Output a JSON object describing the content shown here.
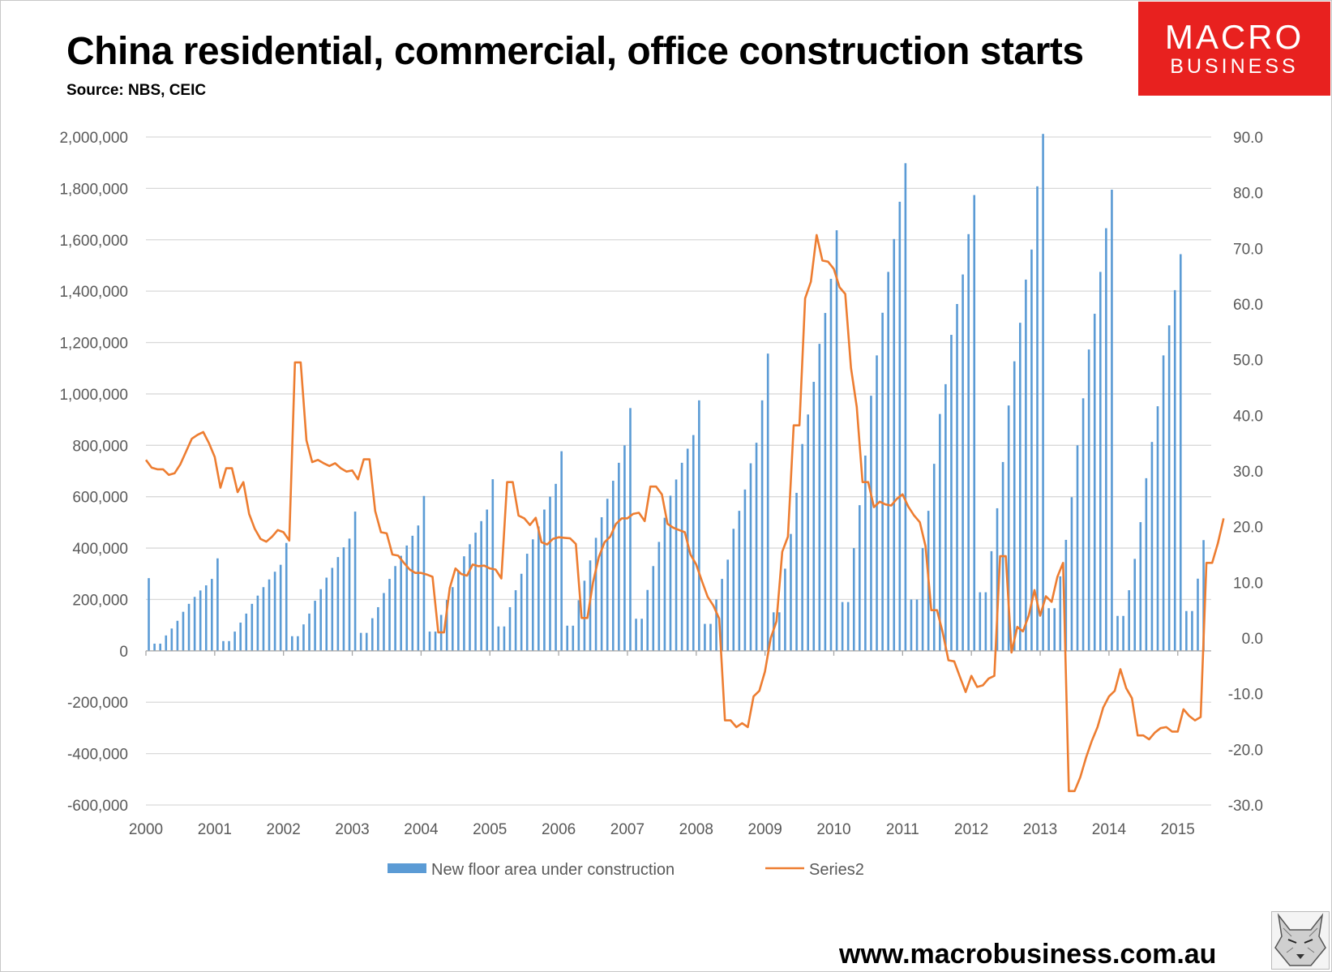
{
  "header": {
    "title": "China residential, commercial, office construction starts",
    "source": "Source: NBS, CEIC"
  },
  "logo": {
    "line1": "MACRO",
    "line2": "BUSINESS"
  },
  "footer": {
    "url": "www.macrobusiness.com.au"
  },
  "colors": {
    "bar": "#5b9bd5",
    "line": "#ed7d31",
    "grid": "#d9d9d9",
    "axis_text": "#595959",
    "logo_bg": "#e8211f"
  },
  "chart_data": {
    "type": "bar+line",
    "title": "China residential, commercial, office construction starts",
    "x_start": 2000,
    "months_per_year": 12,
    "x_ticks": [
      "2000",
      "2001",
      "2002",
      "2003",
      "2004",
      "2005",
      "2006",
      "2007",
      "2008",
      "2009",
      "2010",
      "2011",
      "2012",
      "2013",
      "2014",
      "2015"
    ],
    "y_left": {
      "min": -600000,
      "max": 2000000,
      "step": 200000,
      "ticks": [
        "-600,000",
        "-400,000",
        "-200,000",
        "0",
        "200,000",
        "400,000",
        "600,000",
        "800,000",
        "1,000,000",
        "1,200,000",
        "1,400,000",
        "1,600,000",
        "1,800,000",
        "2,000,000"
      ]
    },
    "y_right": {
      "min": -30,
      "max": 90,
      "step": 10,
      "ticks": [
        "-30.0",
        "-20.0",
        "-10.0",
        "0.0",
        "10.0",
        "20.0",
        "30.0",
        "40.0",
        "50.0",
        "60.0",
        "70.0",
        "80.0",
        "90.0"
      ]
    },
    "series": [
      {
        "name": "New floor area under construction",
        "type": "bar",
        "axis": "left",
        "color": "#5b9bd5",
        "values": [
          283000,
          28000,
          28000,
          60000,
          87000,
          117000,
          152000,
          183000,
          210000,
          235000,
          255000,
          280000,
          360000,
          38000,
          38000,
          75000,
          110000,
          145000,
          183000,
          215000,
          248000,
          278000,
          308000,
          335000,
          420000,
          57000,
          57000,
          103000,
          145000,
          195000,
          240000,
          285000,
          323000,
          365000,
          403000,
          437000,
          542000,
          70000,
          70000,
          127000,
          170000,
          225000,
          280000,
          330000,
          370000,
          410000,
          448000,
          488000,
          603000,
          75000,
          75000,
          140000,
          198000,
          248000,
          312000,
          368000,
          415000,
          460000,
          505000,
          550000,
          668000,
          95000,
          95000,
          170000,
          236000,
          300000,
          378000,
          434000,
          484000,
          550000,
          600000,
          650000,
          777000,
          98000,
          98000,
          197000,
          273000,
          352000,
          440000,
          520000,
          592000,
          662000,
          732000,
          800000,
          945000,
          125000,
          125000,
          237000,
          330000,
          424000,
          518000,
          604000,
          667000,
          732000,
          787000,
          840000,
          975000,
          105000,
          105000,
          200000,
          280000,
          355000,
          475000,
          545000,
          628000,
          730000,
          810000,
          975000,
          1157000,
          150000,
          150000,
          320000,
          455000,
          615000,
          805000,
          920000,
          1047000,
          1195000,
          1315000,
          1448000,
          1637000,
          190000,
          190000,
          400000,
          567000,
          760000,
          993000,
          1150000,
          1316000,
          1475000,
          1603000,
          1748000,
          1898000,
          200000,
          200000,
          400000,
          545000,
          728000,
          922000,
          1038000,
          1230000,
          1350000,
          1465000,
          1622000,
          1774000,
          228000,
          228000,
          388000,
          555000,
          735000,
          955000,
          1127000,
          1277000,
          1445000,
          1562000,
          1808000,
          2012000,
          166000,
          166000,
          290000,
          432000,
          598000,
          800000,
          983000,
          1173000,
          1312000,
          1475000,
          1645000,
          1795000,
          136000,
          136000,
          236000,
          358000,
          501000,
          672000,
          813000,
          952000,
          1150000,
          1267000,
          1404000,
          1544000,
          155000,
          155000,
          281000,
          431000
        ]
      },
      {
        "name": "Series2",
        "type": "line",
        "axis": "right",
        "color": "#ed7d31",
        "values": [
          32.0,
          30.6,
          30.3,
          30.3,
          29.3,
          29.6,
          31.2,
          33.5,
          35.8,
          36.5,
          37.0,
          35.0,
          32.5,
          27.0,
          30.5,
          30.5,
          26.2,
          28.0,
          22.3,
          19.6,
          17.8,
          17.3,
          18.2,
          19.4,
          19.0,
          17.5,
          49.5,
          49.5,
          35.5,
          31.6,
          32.0,
          31.4,
          30.9,
          31.4,
          30.5,
          29.9,
          30.1,
          28.5,
          32.1,
          32.1,
          22.8,
          19.0,
          18.8,
          15.0,
          14.8,
          13.5,
          12.3,
          11.7,
          11.7,
          11.4,
          11.0,
          1.0,
          1.0,
          9.0,
          12.5,
          11.5,
          11.2,
          13.2,
          12.9,
          13.0,
          12.5,
          12.3,
          10.7,
          28.0,
          28.0,
          22.0,
          21.5,
          20.3,
          21.6,
          17.2,
          16.8,
          17.8,
          18.1,
          18.0,
          17.9,
          16.9,
          3.6,
          3.6,
          10.0,
          14.5,
          17.2,
          18.2,
          20.5,
          21.5,
          21.5,
          22.3,
          22.5,
          21.0,
          27.2,
          27.2,
          25.8,
          20.5,
          19.8,
          19.4,
          19.0,
          15.0,
          13.2,
          10.2,
          7.4,
          5.8,
          3.5,
          -14.8,
          -14.8,
          -16.0,
          -15.3,
          -16.0,
          -10.5,
          -9.5,
          -6.0,
          0.0,
          3.0,
          15.5,
          18.2,
          38.2,
          38.2,
          61.0,
          64.0,
          72.4,
          67.8,
          67.6,
          66.3,
          63.0,
          61.8,
          48.5,
          41.5,
          28.0,
          28.0,
          23.5,
          24.5,
          24.0,
          23.8,
          25.0,
          25.8,
          23.6,
          22.0,
          20.8,
          16.5,
          5.0,
          5.0,
          1.0,
          -4.0,
          -4.2,
          -7.0,
          -9.7,
          -6.8,
          -8.8,
          -8.5,
          -7.3,
          -6.8,
          14.7,
          14.7,
          -2.6,
          2.0,
          1.2,
          4.0,
          8.6,
          4.0,
          7.5,
          6.5,
          11.0,
          13.5,
          -27.5,
          -27.5,
          -25.0,
          -21.5,
          -18.5,
          -16.0,
          -12.5,
          -10.5,
          -9.5,
          -5.6,
          -9.0,
          -10.8,
          -17.5,
          -17.5,
          -18.2,
          -17.0,
          -16.2,
          -16.0,
          -16.8,
          -16.8,
          -12.8,
          -14.0,
          -14.8,
          -14.2,
          13.5,
          13.5,
          17.0,
          21.5
        ]
      }
    ],
    "legend": [
      "New floor area under construction",
      "Series2"
    ],
    "legend_position": "bottom",
    "grid": true
  }
}
